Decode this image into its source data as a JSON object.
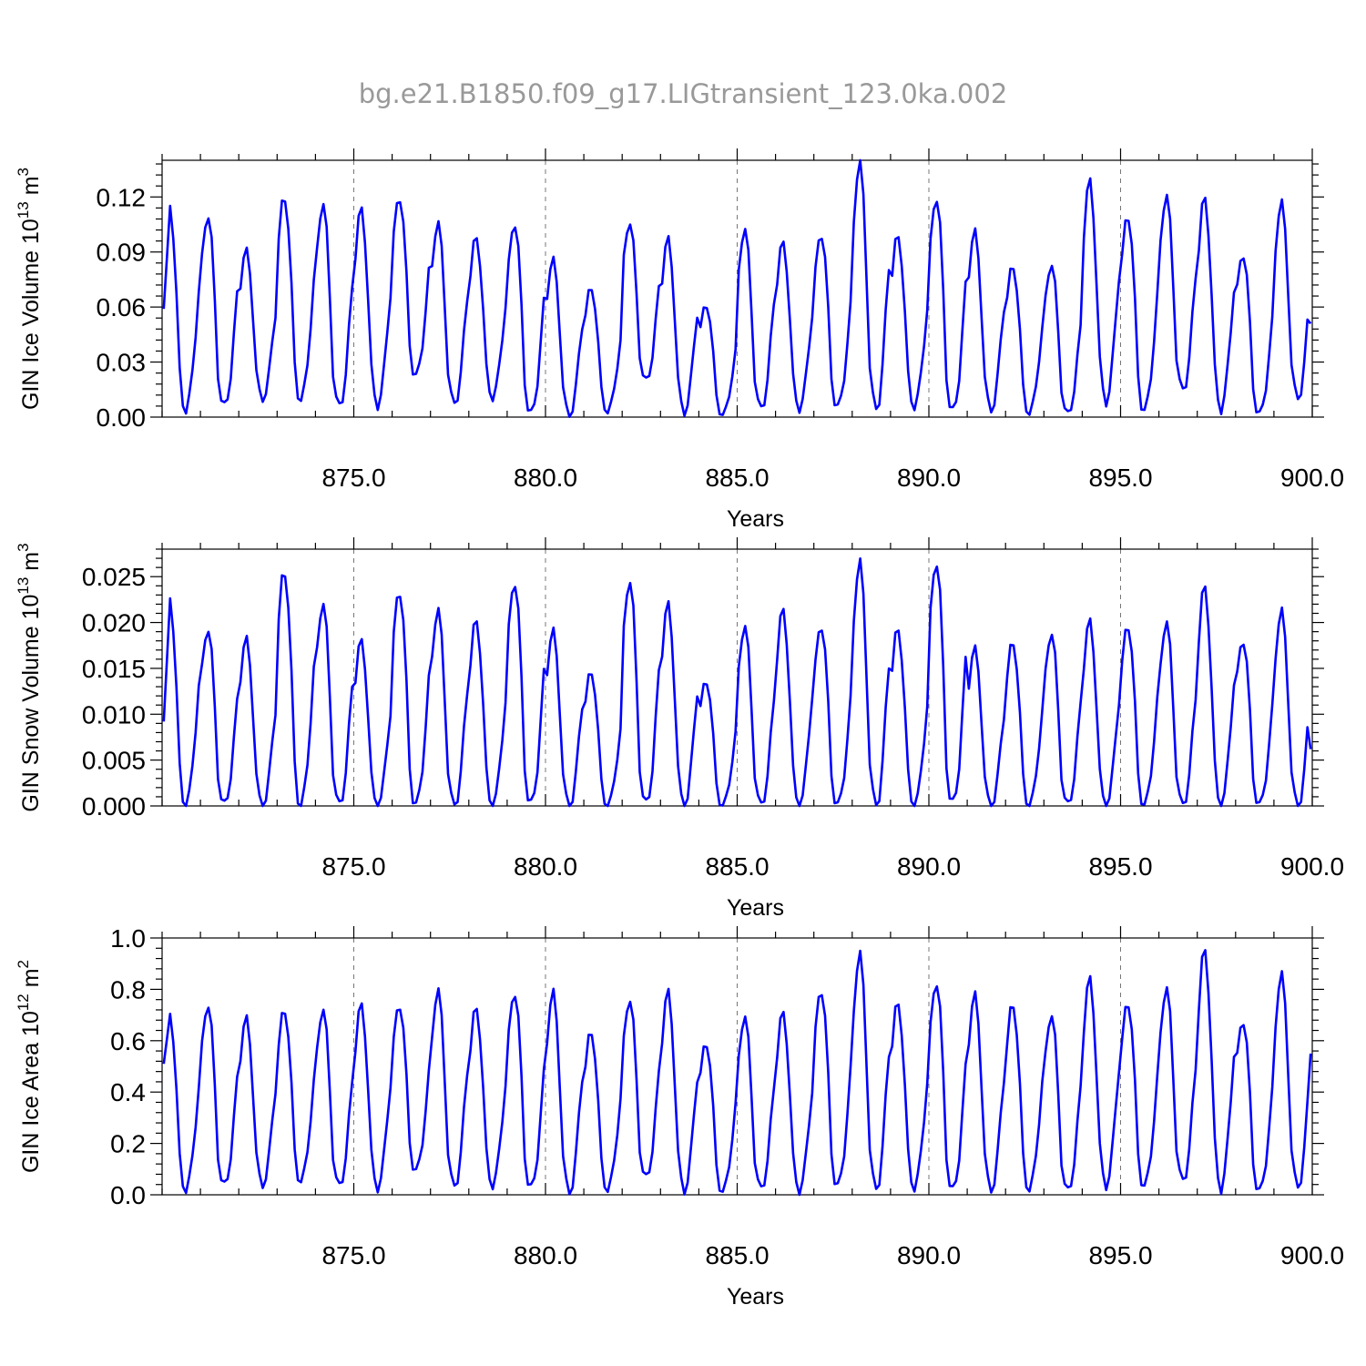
{
  "title": "bg.e21.B1850.f09_g17.LIGtransient_123.0ka.002",
  "colors": {
    "series": "#0000ff",
    "title": "#999999",
    "gridline": "#777777"
  },
  "chart_data": [
    {
      "type": "line",
      "title": "",
      "xlabel": "Years",
      "ylabel_base": "GIN Ice Volume 10",
      "ylabel_exp": "13",
      "ylabel_unit": " m",
      "ylabel_unit_exp": "3",
      "xlim": [
        870.0,
        900.0
      ],
      "ylim": [
        0.0,
        0.14
      ],
      "xticks": [
        875.0,
        880.0,
        885.0,
        890.0,
        895.0,
        900.0
      ],
      "xtick_labels": [
        "875.0",
        "880.0",
        "885.0",
        "890.0",
        "895.0",
        "900.0"
      ],
      "yticks": [
        0.0,
        0.03,
        0.06,
        0.09,
        0.12
      ],
      "ytick_labels": [
        "0.00",
        "0.03",
        "0.06",
        "0.09",
        "0.12"
      ],
      "vertical_dashed_lines": [
        875,
        880,
        885,
        890,
        895
      ],
      "grid": false,
      "series": [
        {
          "peaks": [
            0.116,
            0.11,
            0.09,
            0.12,
            0.116,
            0.112,
            0.12,
            0.105,
            0.097,
            0.106,
            0.085,
            0.07,
            0.106,
            0.096,
            0.061,
            0.102,
            0.094,
            0.1,
            0.138,
            0.098,
            0.12,
            0.1,
            0.082,
            0.083,
            0.127,
            0.11,
            0.12,
            0.118,
            0.089,
            0.116
          ],
          "troughs": [
            0.004,
            0.005,
            0.01,
            0.009,
            0.005,
            0.007,
            0.022,
            0.007,
            0.011,
            0.001,
            0.001,
            0.003,
            0.019,
            0.003,
            0.001,
            0.004,
            0.005,
            0.005,
            0.004,
            0.006,
            0.002,
            0.004,
            0.002,
            0.001,
            0.009,
            0.003,
            0.014,
            0.005,
            0.001,
            0.01
          ],
          "start": 0.059,
          "end": 0.051
        }
      ]
    },
    {
      "type": "line",
      "title": "",
      "xlabel": "Years",
      "ylabel_base": "GIN Snow Volume 10",
      "ylabel_exp": "13",
      "ylabel_unit": " m",
      "ylabel_unit_exp": "3",
      "xlim": [
        870.0,
        900.0
      ],
      "ylim": [
        0.0,
        0.028
      ],
      "xticks": [
        875.0,
        880.0,
        885.0,
        890.0,
        895.0,
        900.0
      ],
      "xtick_labels": [
        "875.0",
        "880.0",
        "885.0",
        "890.0",
        "895.0",
        "900.0"
      ],
      "yticks": [
        0.0,
        0.005,
        0.01,
        0.015,
        0.02,
        0.025
      ],
      "ytick_labels": [
        "0.000",
        "0.005",
        "0.010",
        "0.015",
        "0.020",
        "0.025"
      ],
      "vertical_dashed_lines": [
        875,
        880,
        885,
        890,
        895
      ],
      "grid": false,
      "series": [
        {
          "peaks": [
            0.0228,
            0.0193,
            0.018,
            0.0256,
            0.022,
            0.0178,
            0.0235,
            0.0212,
            0.02,
            0.0245,
            0.0189,
            0.0145,
            0.0246,
            0.0217,
            0.0136,
            0.0195,
            0.0211,
            0.0197,
            0.0264,
            0.0191,
            0.0267,
            0.017,
            0.0178,
            0.0188,
            0.0199,
            0.0197,
            0.0199,
            0.0236,
            0.0181,
            0.0211
          ],
          "troughs": [
            0.0,
            0.0,
            0.0,
            0.0,
            0.0,
            0.0,
            0.0,
            0.0,
            0.0,
            0.0,
            0.0,
            0.0,
            0.0,
            0.0,
            0.0,
            0.0,
            0.0,
            0.0,
            0.0,
            0.0,
            0.0,
            0.0,
            0.0,
            0.0,
            0.0,
            0.0,
            0.0,
            0.0,
            0.0,
            0.0
          ],
          "start": 0.0092,
          "end": 0.0062
        }
      ]
    },
    {
      "type": "line",
      "title": "",
      "xlabel": "Years",
      "ylabel_base": "GIN Ice Area 10",
      "ylabel_exp": "12",
      "ylabel_unit": " m",
      "ylabel_unit_exp": "2",
      "xlim": [
        870.0,
        900.0
      ],
      "ylim": [
        0.0,
        1.0
      ],
      "xticks": [
        875.0,
        880.0,
        885.0,
        890.0,
        895.0,
        900.0
      ],
      "xtick_labels": [
        "875.0",
        "880.0",
        "885.0",
        "890.0",
        "895.0",
        "900.0"
      ],
      "yticks": [
        0.0,
        0.2,
        0.4,
        0.6,
        0.8,
        1.0
      ],
      "ytick_labels": [
        "0.0",
        "0.2",
        "0.4",
        "0.6",
        "0.8",
        "1.0"
      ],
      "vertical_dashed_lines": [
        875,
        880,
        885,
        890,
        895
      ],
      "grid": false,
      "series": [
        {
          "peaks": [
            0.71,
            0.74,
            0.68,
            0.72,
            0.72,
            0.73,
            0.74,
            0.79,
            0.72,
            0.79,
            0.78,
            0.63,
            0.76,
            0.78,
            0.59,
            0.69,
            0.7,
            0.8,
            0.93,
            0.74,
            0.83,
            0.77,
            0.74,
            0.7,
            0.83,
            0.75,
            0.8,
            0.94,
            0.68,
            0.85
          ],
          "troughs": [
            0.02,
            0.03,
            0.04,
            0.05,
            0.03,
            0.03,
            0.09,
            0.03,
            0.04,
            0.02,
            0.01,
            0.02,
            0.06,
            0.02,
            0.01,
            0.02,
            0.02,
            0.03,
            0.02,
            0.03,
            0.01,
            0.02,
            0.02,
            0.01,
            0.04,
            0.03,
            0.05,
            0.03,
            0.01,
            0.03
          ],
          "start": 0.51,
          "end": 0.55
        }
      ]
    }
  ]
}
